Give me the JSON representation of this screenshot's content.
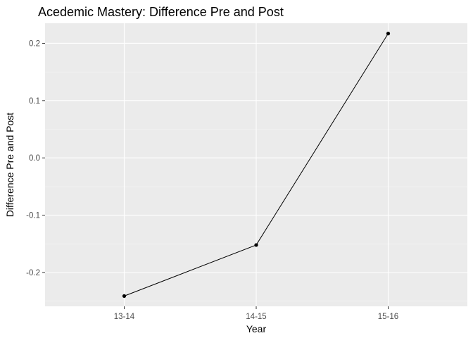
{
  "chart_data": {
    "type": "line",
    "title": "Acedemic Mastery: Difference Pre and Post",
    "xlabel": "Year",
    "ylabel": "Difference Pre and Post",
    "categories": [
      "13-14",
      "14-15",
      "15-16"
    ],
    "series": [
      {
        "values": [
          -0.241,
          -0.152,
          0.217
        ]
      }
    ],
    "y_ticks": [
      -0.2,
      -0.1,
      0.0,
      0.1,
      0.2
    ],
    "y_tick_labels": [
      "-0.2",
      "-0.1",
      "0.0",
      "0.1",
      "0.2"
    ],
    "ylim": [
      -0.259,
      0.235
    ],
    "grid": true,
    "legend": "none",
    "colors": {
      "panel_background": "#ebebeb",
      "grid_major": "#ffffff",
      "grid_minor": "#f5f5f5",
      "line": "#000000",
      "point": "#000000",
      "tick_text": "#4d4d4d",
      "tick_mark": "#333333"
    }
  }
}
